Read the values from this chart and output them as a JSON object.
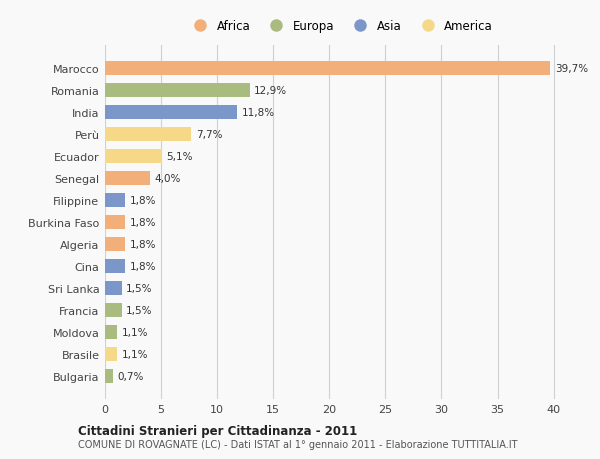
{
  "countries": [
    "Marocco",
    "Romania",
    "India",
    "Perù",
    "Ecuador",
    "Senegal",
    "Filippine",
    "Burkina Faso",
    "Algeria",
    "Cina",
    "Sri Lanka",
    "Francia",
    "Moldova",
    "Brasile",
    "Bulgaria"
  ],
  "values": [
    39.7,
    12.9,
    11.8,
    7.7,
    5.1,
    4.0,
    1.8,
    1.8,
    1.8,
    1.8,
    1.5,
    1.5,
    1.1,
    1.1,
    0.7
  ],
  "labels": [
    "39,7%",
    "12,9%",
    "11,8%",
    "7,7%",
    "5,1%",
    "4,0%",
    "1,8%",
    "1,8%",
    "1,8%",
    "1,8%",
    "1,5%",
    "1,5%",
    "1,1%",
    "1,1%",
    "0,7%"
  ],
  "continents": [
    "Africa",
    "Europa",
    "Asia",
    "America",
    "America",
    "Africa",
    "Asia",
    "Africa",
    "Africa",
    "Asia",
    "Asia",
    "Europa",
    "Europa",
    "America",
    "Europa"
  ],
  "colors": {
    "Africa": "#F2AF7A",
    "Europa": "#AABB80",
    "Asia": "#7B96C8",
    "America": "#F5D888"
  },
  "legend_order": [
    "Africa",
    "Europa",
    "Asia",
    "America"
  ],
  "bar_height": 0.62,
  "xlim": [
    0,
    42
  ],
  "xticks": [
    0,
    5,
    10,
    15,
    20,
    25,
    30,
    35,
    40
  ],
  "title": "Cittadini Stranieri per Cittadinanza - 2011",
  "subtitle": "COMUNE DI ROVAGNATE (LC) - Dati ISTAT al 1° gennaio 2011 - Elaborazione TUTTITALIA.IT",
  "bg_color": "#f9f9f9",
  "grid_color": "#d0d0d0",
  "text_color": "#444444",
  "label_color": "#333333"
}
